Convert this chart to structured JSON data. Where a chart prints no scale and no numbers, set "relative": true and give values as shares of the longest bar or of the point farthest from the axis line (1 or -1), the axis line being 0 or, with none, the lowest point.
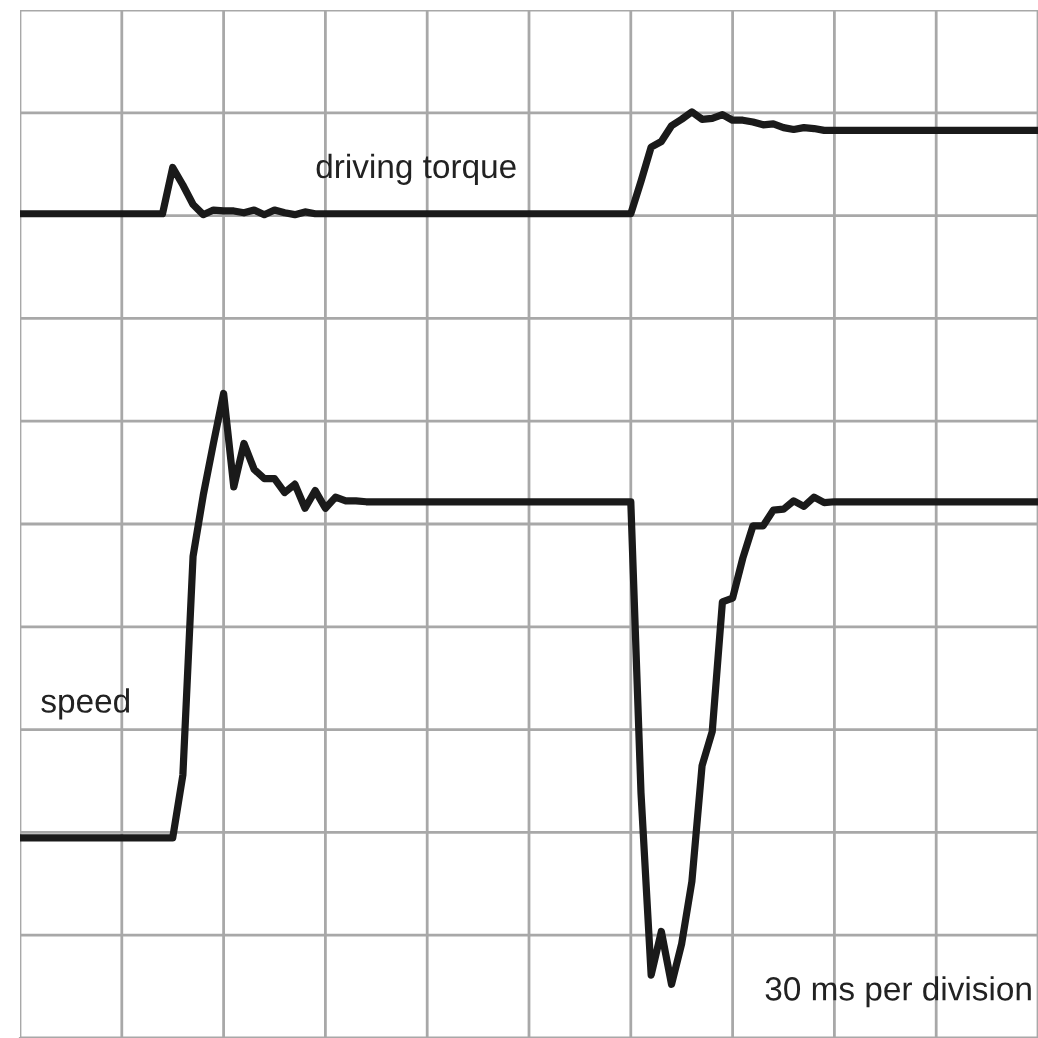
{
  "chart_data": {
    "type": "line",
    "relative": true,
    "grid": true,
    "marker": "none",
    "line_style": "solid",
    "categories": [
      null,
      null,
      null,
      null,
      null,
      null,
      null,
      null,
      null,
      null,
      null,
      null,
      null,
      null,
      null,
      null,
      null,
      null,
      null,
      null,
      null,
      null,
      null,
      null,
      null,
      null,
      null,
      null,
      null,
      null,
      null,
      null,
      null,
      null,
      null,
      null,
      null,
      null,
      null,
      null,
      null,
      null,
      null,
      null,
      null,
      null,
      null,
      null,
      null,
      null,
      null,
      null,
      null,
      null,
      null,
      null,
      null,
      null,
      null,
      null,
      null,
      null,
      null,
      null,
      null,
      null,
      null,
      null,
      null,
      null,
      null,
      null,
      null,
      null,
      null,
      null,
      null,
      null,
      null,
      null,
      null,
      null,
      null,
      null,
      null,
      null,
      null,
      null,
      null,
      null,
      null,
      null,
      null,
      null,
      null,
      null,
      null,
      null,
      null,
      null,
      null
    ],
    "annotations": [
      "30 ms per division"
    ],
    "series": [
      {
        "name": "driving torque",
        "color": "#1a1a1a",
        "values": [
          0.89,
          0.89,
          0.89,
          0.89,
          0.89,
          0.89,
          0.89,
          0.89,
          0.89,
          0.89,
          0.89,
          0.89,
          0.89,
          0.89,
          0.89,
          0.94,
          0.921,
          0.9,
          0.889,
          0.894,
          0.893,
          0.893,
          0.891,
          0.894,
          0.889,
          0.894,
          0.891,
          0.889,
          0.892,
          0.89,
          0.89,
          0.89,
          0.89,
          0.89,
          0.89,
          0.89,
          0.89,
          0.89,
          0.89,
          0.89,
          0.89,
          0.89,
          0.89,
          0.89,
          0.89,
          0.89,
          0.89,
          0.89,
          0.89,
          0.89,
          0.89,
          0.89,
          0.89,
          0.89,
          0.89,
          0.89,
          0.89,
          0.89,
          0.89,
          0.89,
          0.89,
          0.925,
          0.962,
          0.968,
          0.985,
          0.992,
          1,
          0.992,
          0.993,
          0.997,
          0.991,
          0.991,
          0.989,
          0.986,
          0.987,
          0.983,
          0.981,
          0.983,
          0.982,
          0.98,
          0.98,
          0.98,
          0.98,
          0.98,
          0.98,
          0.98,
          0.98,
          0.98,
          0.98,
          0.98,
          0.98,
          0.98,
          0.98,
          0.98,
          0.98,
          0.98,
          0.98,
          0.98,
          0.98,
          0.98,
          0.98
        ]
      },
      {
        "name": "speed",
        "color": "#1a1a1a",
        "values": [
          0.216,
          0.216,
          0.216,
          0.216,
          0.216,
          0.216,
          0.216,
          0.216,
          0.216,
          0.216,
          0.216,
          0.216,
          0.216,
          0.216,
          0.216,
          0.216,
          0.284,
          0.52,
          0.586,
          0.642,
          0.696,
          0.595,
          0.642,
          0.614,
          0.604,
          0.604,
          0.589,
          0.598,
          0.572,
          0.591,
          0.572,
          0.584,
          0.58,
          0.58,
          0.579,
          0.579,
          0.579,
          0.579,
          0.579,
          0.579,
          0.579,
          0.579,
          0.579,
          0.579,
          0.579,
          0.579,
          0.579,
          0.579,
          0.579,
          0.579,
          0.579,
          0.579,
          0.579,
          0.579,
          0.579,
          0.579,
          0.579,
          0.579,
          0.579,
          0.579,
          0.579,
          0.265,
          0.068,
          0.115,
          0.058,
          0.102,
          0.169,
          0.294,
          0.331,
          0.471,
          0.475,
          0.518,
          0.553,
          0.553,
          0.57,
          0.571,
          0.58,
          0.574,
          0.584,
          0.578,
          0.579,
          0.579,
          0.579,
          0.579,
          0.579,
          0.579,
          0.579,
          0.579,
          0.579,
          0.579,
          0.579,
          0.579,
          0.579,
          0.579,
          0.579,
          0.579,
          0.579,
          0.579,
          0.579,
          0.579,
          0.579
        ]
      }
    ]
  }
}
